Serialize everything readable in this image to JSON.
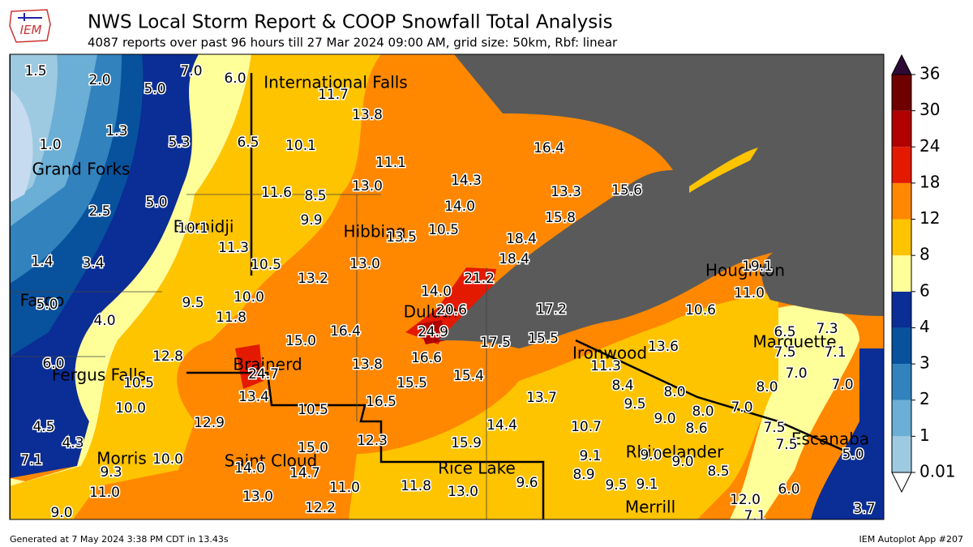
{
  "header": {
    "logo": "IEM",
    "title": "NWS Local Storm Report & COOP Snowfall Total Analysis",
    "subtitle": "4087 reports over past 96 hours till 27 Mar 2024 09:00 AM, grid size: 50km, Rbf: linear"
  },
  "map": {
    "cities": [
      "International Falls",
      "Grand Forks",
      "Bemidji",
      "Hibbing",
      "Houghton",
      "Fargo",
      "Duluth",
      "Marquette",
      "Ironwood",
      "Brainerd",
      "Fergus Falls",
      "Escanaba",
      "Morris",
      "Saint Cloud",
      "Rice Lake",
      "Rhinelander",
      "Merrill"
    ],
    "reports": [
      "1.5",
      "2.0",
      "5.0",
      "7.0",
      "6.0",
      "11.7",
      "13.8",
      "1.3",
      "5.3",
      "6.5",
      "10.1",
      "16.4",
      "1.0",
      "11.1",
      "14.3",
      "13.0",
      "13.3",
      "15.6",
      "11.6",
      "8.5",
      "5.0",
      "14.0",
      "2.5",
      "9.9",
      "15.8",
      "10.1",
      "10.5",
      "13.5",
      "18.4",
      "11.3",
      "1.4",
      "3.4",
      "10.5",
      "13.0",
      "18.4",
      "19.1",
      "13.2",
      "21.2",
      "11.0",
      "14.0",
      "10.0",
      "9.5",
      "5.0",
      "20.6",
      "17.2",
      "10.6",
      "11.8",
      "4.0",
      "24.9",
      "16.4",
      "15.0",
      "17.5",
      "15.5",
      "6.5",
      "7.3",
      "13.6",
      "7.5",
      "7.1",
      "12.8",
      "16.6",
      "6.0",
      "13.8",
      "11.3",
      "24.7",
      "15.4",
      "7.0",
      "10.5",
      "15.5",
      "8.4",
      "8.0",
      "7.0",
      "13.4",
      "8.0",
      "13.7",
      "16.5",
      "9.5",
      "10.0",
      "10.5",
      "8.0",
      "7.0",
      "12.9",
      "14.4",
      "9.0",
      "10.7",
      "4.5",
      "8.6",
      "7.5",
      "12.3",
      "15.9",
      "4.3",
      "7.5",
      "15.0",
      "9.1",
      "9.0",
      "9.0",
      "5.0",
      "10.0",
      "7.1",
      "14.0",
      "14.7",
      "9.3",
      "8.9",
      "8.5",
      "11.8",
      "13.0",
      "9.6",
      "9.5",
      "9.1",
      "11.0",
      "6.0",
      "11.0",
      "13.0",
      "12.0",
      "12.2",
      "3.7",
      "9.0",
      "7.1"
    ]
  },
  "colorbar": {
    "levels": [
      0.01,
      1,
      2,
      3,
      4,
      6,
      8,
      12,
      18,
      24,
      30,
      36
    ],
    "colors": [
      "#c6dbef",
      "#9ecae1",
      "#6baed6",
      "#3182bd",
      "#08519c",
      "#0a2d96",
      "#ffff9a",
      "#ffc400",
      "#ff8800",
      "#e31a00",
      "#b00000",
      "#6e0000"
    ],
    "over_color": "#2d0a36",
    "land_color": "#5a5a5a"
  },
  "footer": {
    "generated": "Generated at 7 May 2024 3:38 PM CDT in 13.43s",
    "app": "IEM Autoplot App #207"
  }
}
